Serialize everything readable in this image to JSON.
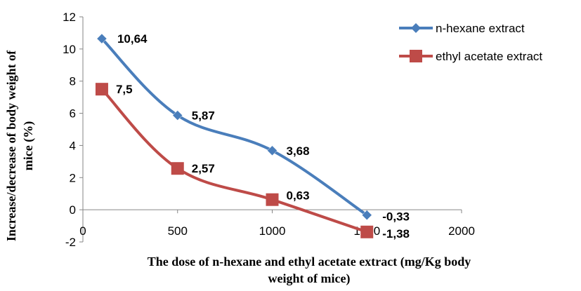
{
  "chart_data": {
    "type": "line",
    "xlabel": "The dose of n-hexane and ethyl acetate extract (mg/Kg body weight of mice)",
    "xlabel_lines": [
      "The dose of n-hexane and ethyl acetate extract (mg/Kg body",
      "weight of mice)"
    ],
    "ylabel": "Increase/decrease of body weight of mice (%)",
    "ylabel_lines": [
      "Increase/decrease of body weight of",
      "mice (%)"
    ],
    "xlim": [
      0,
      2000
    ],
    "ylim": [
      -2,
      12
    ],
    "x_ticks": [
      0,
      500,
      1000,
      1500,
      2000
    ],
    "y_ticks": [
      -2,
      0,
      2,
      4,
      6,
      8,
      10,
      12
    ],
    "legend_position": "top-right",
    "series": [
      {
        "name": "n-hexane extract",
        "color": "#4a7ebb",
        "marker": "diamond",
        "x": [
          100,
          500,
          1000,
          1500
        ],
        "values": [
          10.64,
          5.87,
          3.68,
          -0.33
        ],
        "labels": [
          "10,64",
          "5,87",
          "3,68",
          "-0,33"
        ]
      },
      {
        "name": "ethyl acetate extract",
        "color": "#be4b48",
        "marker": "square",
        "x": [
          100,
          500,
          1000,
          1500
        ],
        "values": [
          7.5,
          2.57,
          0.63,
          -1.38
        ],
        "labels": [
          "7,5",
          "2,57",
          "0,63",
          "-1,38"
        ]
      }
    ]
  }
}
